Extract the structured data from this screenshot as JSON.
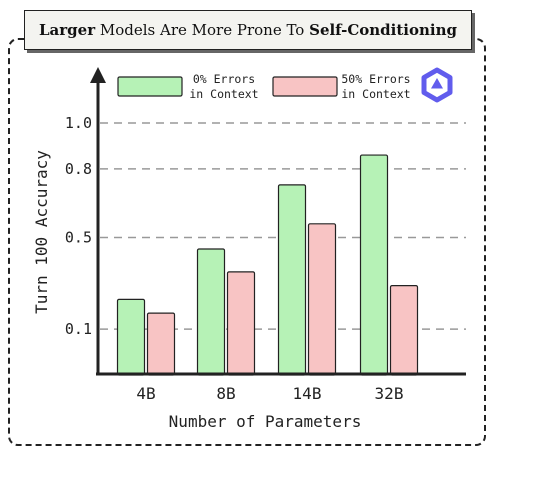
{
  "title": {
    "part1_bold": "Larger",
    "part2": " Models Are More Prone To ",
    "part3_bold": "Self-Conditioning"
  },
  "logo": {
    "name": "model-logo-icon",
    "color": "#615ced"
  },
  "chart_data": {
    "type": "bar",
    "categories": [
      "4B",
      "8B",
      "14B",
      "32B"
    ],
    "series": [
      {
        "name": "0% Errors in Context",
        "legend_lines": [
          "0% Errors",
          "in Context"
        ],
        "color": "#b6f2b6",
        "values": [
          0.23,
          0.45,
          0.73,
          0.86
        ]
      },
      {
        "name": "50% Errors in Context",
        "legend_lines": [
          "50% Errors",
          "in Context"
        ],
        "color": "#f8c4c4",
        "values": [
          0.17,
          0.35,
          0.56,
          0.29
        ]
      }
    ],
    "xlabel": "Number of Parameters",
    "ylabel": "Turn 100 Accuracy",
    "yticks": [
      0.1,
      0.5,
      0.8,
      1.0
    ],
    "ytick_labels": [
      "0.1",
      "0.5",
      "0.8",
      "1.0"
    ],
    "ylim": [
      -0.1,
      1.1
    ],
    "grid": "dashed horizontal at ticks",
    "legend": "top"
  }
}
